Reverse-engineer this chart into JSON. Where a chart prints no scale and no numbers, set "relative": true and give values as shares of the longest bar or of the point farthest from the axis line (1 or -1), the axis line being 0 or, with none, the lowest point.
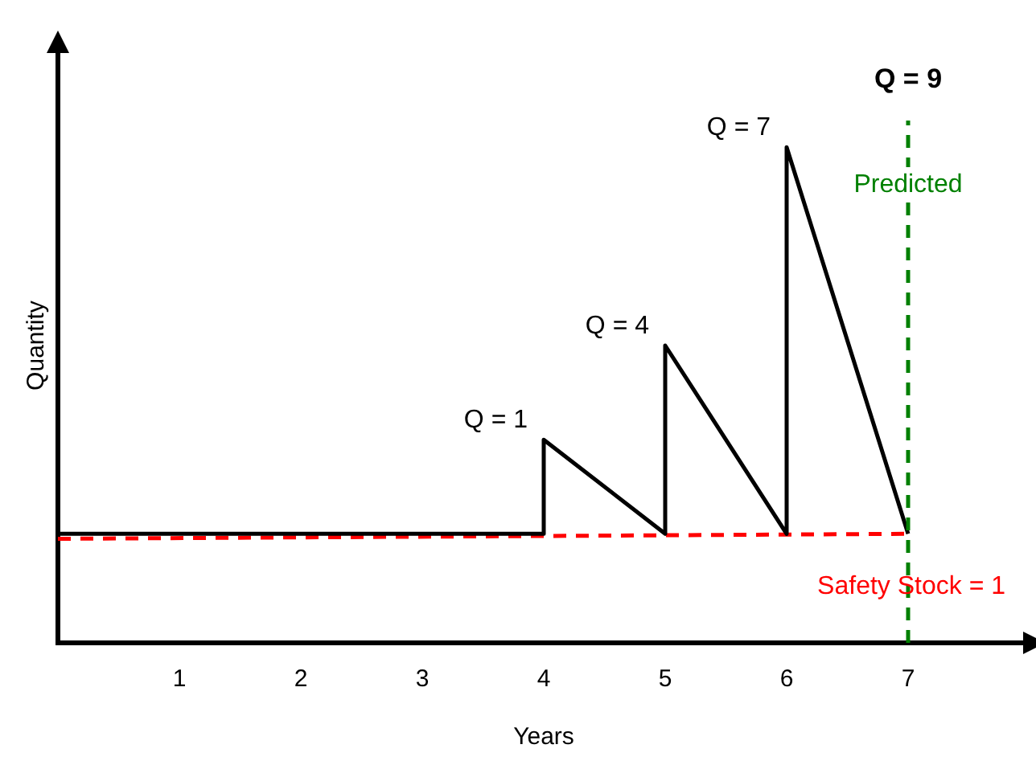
{
  "chart_data": {
    "type": "line",
    "relative": true,
    "xlabel": "Years",
    "ylabel": "Quantity",
    "xlim": [
      0,
      8
    ],
    "xticks": [
      1,
      2,
      3,
      4,
      5,
      6,
      7
    ],
    "grid": false,
    "legend": false,
    "marker": "none",
    "series": [
      {
        "color": "#000000",
        "line_style": "solid",
        "x": [
          0,
          4,
          4,
          5,
          5,
          6,
          6,
          7
        ],
        "values": [
          0.22,
          0.22,
          0.41,
          0.22,
          0.6,
          0.22,
          1.0,
          0.22
        ]
      },
      {
        "name": "Safety Stock = 1",
        "color": "#ff0000",
        "line_style": "dashed",
        "x": [
          0,
          7
        ],
        "values": [
          0.21,
          0.22
        ]
      }
    ],
    "ref_lines": [
      {
        "axis": "x",
        "value": 7,
        "label": "Predicted",
        "color": "#008000",
        "line_style": "dashed"
      }
    ],
    "annotations": [
      {
        "text": "Q = 1",
        "x": 4,
        "y": 0.41
      },
      {
        "text": "Q = 4",
        "x": 5,
        "y": 0.6
      },
      {
        "text": "Q = 7",
        "x": 6,
        "y": 1.0
      },
      "Q = 9"
    ]
  }
}
